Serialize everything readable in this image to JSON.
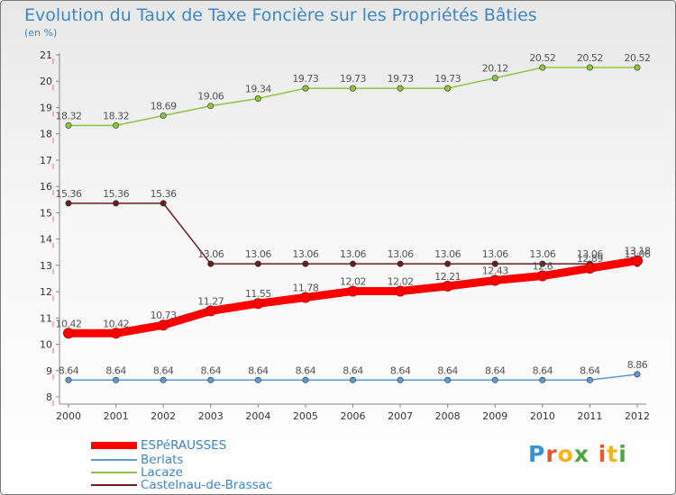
{
  "title": "Evolution du Taux de Taxe Foncière sur les Propriétés Bâties",
  "unit_label": "(en %)",
  "logo_text": "Prox iti",
  "chart_data": {
    "type": "line",
    "title": "Evolution du Taux de Taxe Foncière sur les Propriétés Bâties",
    "ylabel": "(en %)",
    "xlabel": "",
    "ylim": [
      8,
      21
    ],
    "yticks": [
      8,
      9,
      10,
      11,
      12,
      13,
      14,
      15,
      16,
      17,
      18,
      19,
      20,
      21
    ],
    "grid": false,
    "categories": [
      "2000",
      "2001",
      "2002",
      "2003",
      "2004",
      "2005",
      "2006",
      "2007",
      "2008",
      "2009",
      "2010",
      "2011",
      "2012"
    ],
    "series": [
      {
        "name": "ESPéRAUSSES",
        "color": "#ff0000",
        "values": [
          10.42,
          10.42,
          10.73,
          11.27,
          11.55,
          11.78,
          12.02,
          12.02,
          12.21,
          12.43,
          12.6,
          12.89,
          13.18
        ],
        "labels": [
          "10.42",
          "10.42",
          "10.73",
          "11.27",
          "11.55",
          "11.78",
          "12.02",
          "12.02",
          "12.21",
          "12.43",
          "12.6",
          "12.89",
          "13.18"
        ]
      },
      {
        "name": "Berlats",
        "color": "#5b9bd5",
        "values": [
          8.64,
          8.64,
          8.64,
          8.64,
          8.64,
          8.64,
          8.64,
          8.64,
          8.64,
          8.64,
          8.64,
          8.64,
          8.86
        ],
        "labels": [
          "8.64",
          "8.64",
          "8.64",
          "8.64",
          "8.64",
          "8.64",
          "8.64",
          "8.64",
          "8.64",
          "8.64",
          "8.64",
          "8.64",
          "8.86"
        ]
      },
      {
        "name": "Lacaze",
        "color": "#8cc63f",
        "values": [
          18.32,
          18.32,
          18.69,
          19.06,
          19.34,
          19.73,
          19.73,
          19.73,
          19.73,
          20.12,
          20.52,
          20.52,
          20.52
        ],
        "labels": [
          "18.32",
          "18.32",
          "18.69",
          "19.06",
          "19.34",
          "19.73",
          "19.73",
          "19.73",
          "19.73",
          "20.12",
          "20.52",
          "20.52",
          "20.52"
        ]
      },
      {
        "name": "Castelnau-de-Brassac",
        "color": "#6b1d1d",
        "values": [
          15.36,
          15.36,
          15.36,
          13.06,
          13.06,
          13.06,
          13.06,
          13.06,
          13.06,
          13.06,
          13.06,
          13.06,
          13.06
        ],
        "labels": [
          "15.36",
          "15.36",
          "15.36",
          "13.06",
          "13.06",
          "13.06",
          "13.06",
          "13.06",
          "13.06",
          "13.06",
          "13.06",
          "13.06",
          "13.06"
        ]
      }
    ],
    "legend_position": "bottom-left"
  }
}
